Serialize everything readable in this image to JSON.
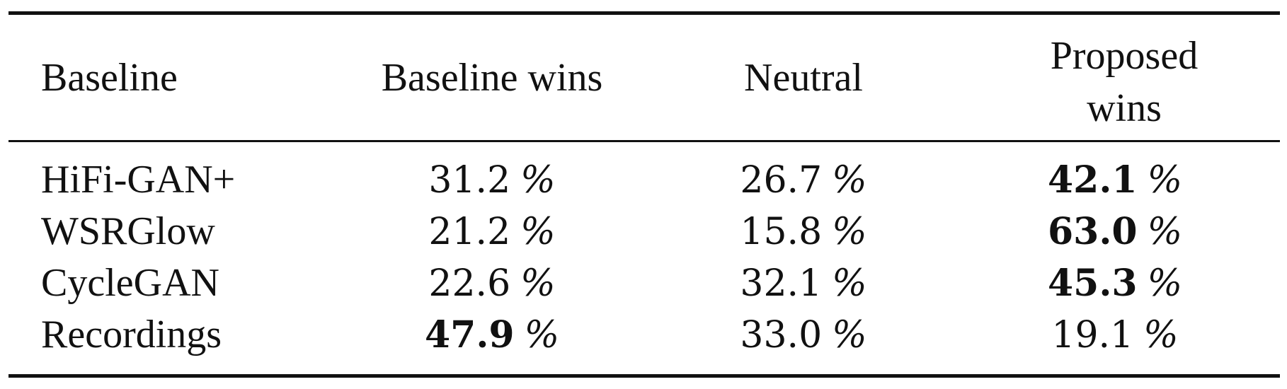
{
  "table": {
    "headers": [
      "Baseline",
      "Baseline wins",
      "Neutral",
      "Proposed wins"
    ],
    "rows": [
      {
        "baseline": "HiFi-GAN+",
        "baseline_wins": "31.2",
        "neutral": "26.7",
        "proposed_wins": "42.1",
        "bold": "proposed_wins"
      },
      {
        "baseline": "WSRGlow",
        "baseline_wins": "21.2",
        "neutral": "15.8",
        "proposed_wins": "63.0",
        "bold": "proposed_wins"
      },
      {
        "baseline": "CycleGAN",
        "baseline_wins": "22.6",
        "neutral": "32.1",
        "proposed_wins": "45.3",
        "bold": "proposed_wins"
      },
      {
        "baseline": "Recordings",
        "baseline_wins": "47.9",
        "neutral": "33.0",
        "proposed_wins": "19.1",
        "bold": "baseline_wins"
      }
    ],
    "unit": "%"
  }
}
